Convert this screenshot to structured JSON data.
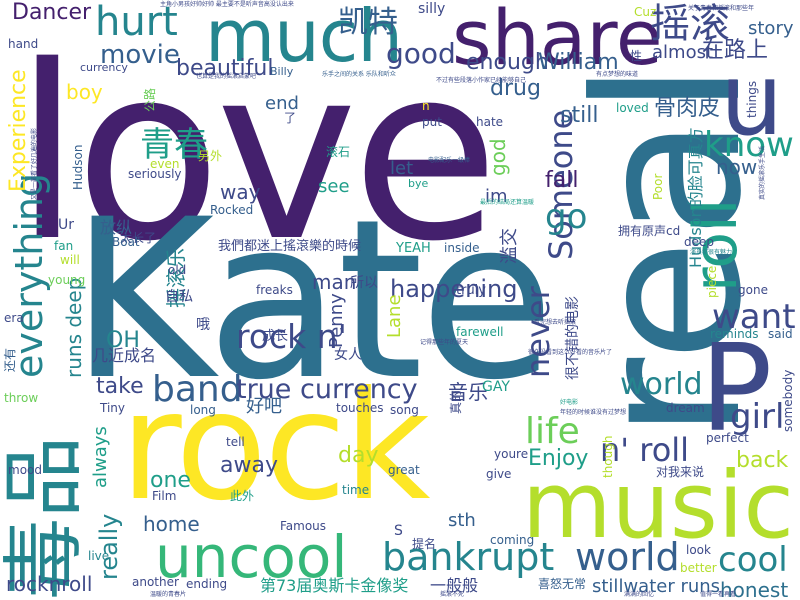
{
  "palette": {
    "purple": "#44206d",
    "indigo": "#3e4a89",
    "blue": "#355f8d",
    "slate": "#2d708e",
    "teal": "#25858e",
    "green": "#1f9e89",
    "mint": "#35b779",
    "lime": "#6cce59",
    "yellowgreen": "#b4de2c",
    "yellow": "#fde725"
  },
  "words": [
    {
      "text": "love",
      "color": "purple"
    },
    {
      "text": "Kate",
      "color": "slate"
    },
    {
      "text": "real",
      "color": "slate"
    },
    {
      "text": "rock",
      "color": "yellow"
    },
    {
      "text": "music",
      "color": "yellowgreen"
    },
    {
      "text": "share",
      "color": "purple"
    },
    {
      "text": "much",
      "color": "teal"
    },
    {
      "text": "毒品",
      "color": "teal"
    },
    {
      "text": "P",
      "color": "indigo"
    },
    {
      "text": "u",
      "color": "indigo"
    },
    {
      "text": "roll",
      "color": "green"
    },
    {
      "text": "uncool",
      "color": "mint"
    },
    {
      "text": "bankrupt",
      "color": "teal"
    },
    {
      "text": "world",
      "color": "blue"
    },
    {
      "text": "cool",
      "color": "teal"
    },
    {
      "text": "hurt",
      "color": "teal"
    },
    {
      "text": "摇滚",
      "color": "indigo"
    },
    {
      "text": "band",
      "color": "blue"
    },
    {
      "text": "true currency",
      "color": "indigo"
    },
    {
      "text": "rock n'",
      "color": "indigo"
    },
    {
      "text": "n' roll",
      "color": "indigo"
    },
    {
      "text": "life",
      "color": "lime"
    },
    {
      "text": "everything",
      "color": "teal"
    },
    {
      "text": "never",
      "color": "indigo"
    },
    {
      "text": "Someone",
      "color": "indigo"
    },
    {
      "text": "want",
      "color": "indigo"
    },
    {
      "text": "know",
      "color": "green"
    },
    {
      "text": "world",
      "color": "teal"
    },
    {
      "text": "girl",
      "color": "indigo"
    },
    {
      "text": "go",
      "color": "teal"
    },
    {
      "text": "good",
      "color": "indigo"
    },
    {
      "text": "movie",
      "color": "blue"
    },
    {
      "text": "enough",
      "color": "indigo"
    },
    {
      "text": "青春",
      "color": "green"
    },
    {
      "text": "凯特",
      "color": "blue"
    },
    {
      "text": "happening",
      "color": "indigo"
    },
    {
      "text": "beautiful",
      "color": "indigo"
    },
    {
      "text": "William",
      "color": "blue"
    },
    {
      "text": "almost",
      "color": "indigo"
    },
    {
      "text": "在路上",
      "color": "indigo"
    },
    {
      "text": "Dancer",
      "color": "purple"
    },
    {
      "text": "story",
      "color": "blue"
    },
    {
      "text": "drug",
      "color": "blue"
    },
    {
      "text": "still",
      "color": "blue"
    },
    {
      "text": "骨肉皮",
      "color": "blue"
    },
    {
      "text": "fall",
      "color": "purple"
    },
    {
      "text": "now",
      "color": "blue"
    },
    {
      "text": "back",
      "color": "yellowgreen"
    },
    {
      "text": "Enjoy",
      "color": "green"
    },
    {
      "text": "home",
      "color": "blue"
    },
    {
      "text": "away",
      "color": "indigo"
    },
    {
      "text": "one",
      "color": "green"
    },
    {
      "text": "day",
      "color": "yellowgreen"
    },
    {
      "text": "really",
      "color": "teal"
    },
    {
      "text": "rocknroll",
      "color": "indigo"
    },
    {
      "text": "honest",
      "color": "slate"
    },
    {
      "text": "stillwater runs",
      "color": "blue"
    },
    {
      "text": "第73届奥斯卡金像奖",
      "color": "green"
    },
    {
      "text": "一般般",
      "color": "indigo"
    },
    {
      "text": "Experience",
      "color": "yellow"
    },
    {
      "text": "boy",
      "color": "yellow"
    },
    {
      "text": "end",
      "color": "blue"
    },
    {
      "text": "way",
      "color": "indigo"
    },
    {
      "text": "see",
      "color": "green"
    },
    {
      "text": "let",
      "color": "blue"
    },
    {
      "text": "im",
      "color": "indigo"
    },
    {
      "text": "god",
      "color": "lime"
    },
    {
      "text": "OH",
      "color": "teal"
    },
    {
      "text": "take",
      "color": "indigo"
    },
    {
      "text": "always",
      "color": "green"
    },
    {
      "text": "摇滚乐",
      "color": "teal"
    },
    {
      "text": "放纵",
      "color": "blue"
    },
    {
      "text": "man",
      "color": "indigo"
    },
    {
      "text": "所以",
      "color": "indigo"
    },
    {
      "text": "音乐",
      "color": "indigo"
    },
    {
      "text": "好吧",
      "color": "blue"
    },
    {
      "text": "Penny",
      "color": "indigo"
    },
    {
      "text": "Lane",
      "color": "yellowgreen"
    },
    {
      "text": "runs deep",
      "color": "teal"
    },
    {
      "text": "几近成名",
      "color": "indigo"
    },
    {
      "text": "Hudson的脸可真方",
      "color": "teal"
    },
    {
      "text": "很不错的电影",
      "color": "indigo"
    },
    {
      "text": "滥交",
      "color": "indigo"
    },
    {
      "text": "我們都迷上搖滾樂的時候",
      "color": "indigo"
    },
    {
      "text": "拥有原声cd",
      "color": "indigo"
    },
    {
      "text": "自私",
      "color": "indigo"
    },
    {
      "text": "女人",
      "color": "indigo"
    },
    {
      "text": "成长",
      "color": "indigo"
    },
    {
      "text": "哦",
      "color": "indigo"
    },
    {
      "text": "GAY",
      "color": "green"
    },
    {
      "text": "hand",
      "color": "indigo"
    },
    {
      "text": "currency",
      "color": "indigo"
    },
    {
      "text": "Billy",
      "color": "blue"
    },
    {
      "text": "silly",
      "color": "indigo"
    },
    {
      "text": "Cuz",
      "color": "yellowgreen"
    },
    {
      "text": "性",
      "color": "indigo"
    },
    {
      "text": "things",
      "color": "indigo"
    },
    {
      "text": "loved",
      "color": "green"
    },
    {
      "text": "hate",
      "color": "indigo"
    },
    {
      "text": "put",
      "color": "indigo"
    },
    {
      "text": "n",
      "color": "yellow"
    },
    {
      "text": "了",
      "color": "indigo"
    },
    {
      "text": "公路",
      "color": "lime"
    },
    {
      "text": "even",
      "color": "yellowgreen"
    },
    {
      "text": "另外",
      "color": "yellowgreen"
    },
    {
      "text": "滚石",
      "color": "green"
    },
    {
      "text": "seriously",
      "color": "indigo"
    },
    {
      "text": "Hudson",
      "color": "blue"
    },
    {
      "text": "bye",
      "color": "green"
    },
    {
      "text": "Poor",
      "color": "yellowgreen"
    },
    {
      "text": "Ur",
      "color": "indigo"
    },
    {
      "text": "fan",
      "color": "green"
    },
    {
      "text": "will",
      "color": "yellowgreen"
    },
    {
      "text": "young",
      "color": "lime"
    },
    {
      "text": "太长了",
      "color": "indigo"
    },
    {
      "text": "Boat",
      "color": "blue"
    },
    {
      "text": "Rocked",
      "color": "blue"
    },
    {
      "text": "inside",
      "color": "blue"
    },
    {
      "text": "YEAH",
      "color": "green"
    },
    {
      "text": "deep",
      "color": "indigo"
    },
    {
      "text": "old",
      "color": "indigo"
    },
    {
      "text": "freaks",
      "color": "indigo"
    },
    {
      "text": "truly",
      "color": "indigo"
    },
    {
      "text": "farewell",
      "color": "green"
    },
    {
      "text": "piece",
      "color": "yellowgreen"
    },
    {
      "text": "gone",
      "color": "indigo"
    },
    {
      "text": "reminds",
      "color": "teal"
    },
    {
      "text": "said",
      "color": "blue"
    },
    {
      "text": "era",
      "color": "indigo"
    },
    {
      "text": "还有",
      "color": "blue"
    },
    {
      "text": "throw",
      "color": "lime"
    },
    {
      "text": "Tiny",
      "color": "indigo"
    },
    {
      "text": "long",
      "color": "blue"
    },
    {
      "text": "touches",
      "color": "indigo"
    },
    {
      "text": "song",
      "color": "indigo"
    },
    {
      "text": "真的",
      "color": "indigo"
    },
    {
      "text": "dream",
      "color": "indigo"
    },
    {
      "text": "perfect",
      "color": "indigo"
    },
    {
      "text": "somebody",
      "color": "indigo"
    },
    {
      "text": "tell",
      "color": "indigo"
    },
    {
      "text": "youre",
      "color": "indigo"
    },
    {
      "text": "give",
      "color": "indigo"
    },
    {
      "text": "though",
      "color": "yellowgreen"
    },
    {
      "text": "对我来说",
      "color": "indigo"
    },
    {
      "text": "mood",
      "color": "indigo"
    },
    {
      "text": "great",
      "color": "blue"
    },
    {
      "text": "time",
      "color": "teal"
    },
    {
      "text": "此外",
      "color": "green"
    },
    {
      "text": "Film",
      "color": "indigo"
    },
    {
      "text": "Famous",
      "color": "indigo"
    },
    {
      "text": "S",
      "color": "indigo"
    },
    {
      "text": "提名",
      "color": "indigo"
    },
    {
      "text": "sth",
      "color": "blue"
    },
    {
      "text": "coming",
      "color": "blue"
    },
    {
      "text": "喜怒无常",
      "color": "blue"
    },
    {
      "text": "look",
      "color": "indigo"
    },
    {
      "text": "better",
      "color": "yellowgreen"
    },
    {
      "text": "live",
      "color": "teal"
    },
    {
      "text": "another",
      "color": "indigo"
    },
    {
      "text": "ending",
      "color": "indigo"
    },
    {
      "text": "主角小男孩好帅好帅 最主要不是听声音高没认出来",
      "color": "indigo"
    },
    {
      "text": "也算是我的摇滚启蒙吧",
      "color": "indigo"
    },
    {
      "text": "乐手之间的关系 乐队和听众",
      "color": "blue"
    },
    {
      "text": "有点梦想的味道",
      "color": "indigo"
    },
    {
      "text": "不过有些段落小作家已经能够自己",
      "color": "indigo"
    },
    {
      "text": "关于青春和摇滚和那些年",
      "color": "indigo"
    },
    {
      "text": "又是一部看了好几遍的电影",
      "color": "indigo"
    },
    {
      "text": "电影配乐一级棒",
      "color": "blue"
    },
    {
      "text": "很久没看到这么好看的音乐片了",
      "color": "indigo"
    },
    {
      "text": "最后的结局还算温暖",
      "color": "green"
    },
    {
      "text": "年轻的时候谁没有过梦想",
      "color": "indigo"
    },
    {
      "text": "真实的摇滚乐手生活",
      "color": "indigo"
    },
    {
      "text": "记得那些年的夏天",
      "color": "indigo"
    },
    {
      "text": "看完想去听摇滚",
      "color": "indigo"
    },
    {
      "text": "演员都很有魅力",
      "color": "teal"
    },
    {
      "text": "温暖的青春片",
      "color": "indigo"
    },
    {
      "text": "摇滚不死",
      "color": "indigo"
    },
    {
      "text": "满满的回忆",
      "color": "indigo"
    },
    {
      "text": "值得一看再看",
      "color": "indigo"
    },
    {
      "text": "好电影",
      "color": "green"
    }
  ]
}
